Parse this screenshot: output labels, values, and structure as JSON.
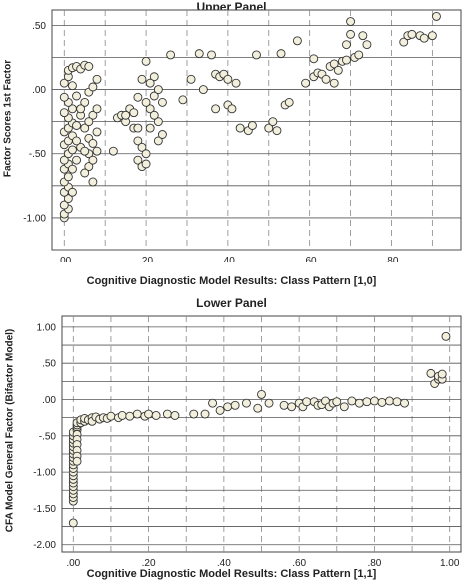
{
  "chart_data": [
    {
      "type": "scatter",
      "title": "Upper Panel",
      "xlabel": "Cognitive Diagnostic Model Results: Class Pattern [1,0]",
      "ylabel": "Factor Scores 1st Factor",
      "xlim": [
        -0.03,
        0.97
      ],
      "ylim": [
        -1.25,
        0.62
      ],
      "xticks": [
        ".00",
        ".20",
        ".40",
        ".60",
        ".80"
      ],
      "xtick_values": [
        0.0,
        0.2,
        0.4,
        0.6,
        0.8
      ],
      "yticks": [
        ".50",
        ".00",
        "-.50",
        "-1.00"
      ],
      "ytick_values": [
        0.5,
        0.0,
        -0.5,
        -1.0
      ],
      "grid": "dashed vertical at 0.1 steps, solid horizontal at 0.25 steps",
      "marker_color": "#f2efdc",
      "points": [
        [
          0.0,
          -1.0
        ],
        [
          0.0,
          -0.97
        ],
        [
          0.01,
          -0.93
        ],
        [
          0.0,
          -0.9
        ],
        [
          0.01,
          -0.85
        ],
        [
          0.0,
          -0.8
        ],
        [
          0.01,
          -0.76
        ],
        [
          0.0,
          -0.72
        ],
        [
          0.01,
          -0.68
        ],
        [
          0.0,
          -0.62
        ],
        [
          0.01,
          -0.58
        ],
        [
          0.0,
          -0.55
        ],
        [
          0.01,
          -0.5
        ],
        [
          0.02,
          -0.47
        ],
        [
          0.0,
          -0.43
        ],
        [
          0.01,
          -0.4
        ],
        [
          0.02,
          -0.36
        ],
        [
          0.0,
          -0.33
        ],
        [
          0.01,
          -0.3
        ],
        [
          0.02,
          -0.26
        ],
        [
          0.01,
          -0.22
        ],
        [
          0.0,
          -0.18
        ],
        [
          0.02,
          -0.15
        ],
        [
          0.01,
          -0.1
        ],
        [
          0.0,
          -0.06
        ],
        [
          0.0,
          0.05
        ],
        [
          0.01,
          0.1
        ],
        [
          0.01,
          0.15
        ],
        [
          0.02,
          0.17
        ],
        [
          0.03,
          0.18
        ],
        [
          0.04,
          0.16
        ],
        [
          0.05,
          0.19
        ],
        [
          0.06,
          0.18
        ],
        [
          0.02,
          0.03
        ],
        [
          0.03,
          -0.05
        ],
        [
          0.03,
          -0.28
        ],
        [
          0.04,
          -0.2
        ],
        [
          0.04,
          -0.45
        ],
        [
          0.05,
          -0.3
        ],
        [
          0.05,
          -0.1
        ],
        [
          0.06,
          -0.38
        ],
        [
          0.06,
          -0.5
        ],
        [
          0.07,
          -0.42
        ],
        [
          0.07,
          -0.2
        ],
        [
          0.08,
          -0.33
        ],
        [
          0.08,
          -0.48
        ],
        [
          0.06,
          -0.02
        ],
        [
          0.07,
          0.02
        ],
        [
          0.08,
          0.08
        ],
        [
          0.06,
          -0.6
        ],
        [
          0.07,
          -0.72
        ],
        [
          0.03,
          -0.55
        ],
        [
          0.05,
          -0.65
        ],
        [
          0.02,
          -0.8
        ],
        [
          0.04,
          -0.15
        ],
        [
          0.03,
          -0.4
        ],
        [
          0.05,
          -0.48
        ],
        [
          0.06,
          -0.25
        ],
        [
          0.08,
          -0.15
        ],
        [
          0.07,
          -0.55
        ],
        [
          0.02,
          -0.62
        ],
        [
          0.12,
          -0.48
        ],
        [
          0.13,
          -0.22
        ],
        [
          0.14,
          -0.2
        ],
        [
          0.15,
          -0.25
        ],
        [
          0.16,
          -0.15
        ],
        [
          0.17,
          -0.18
        ],
        [
          0.17,
          -0.3
        ],
        [
          0.18,
          -0.4
        ],
        [
          0.18,
          -0.55
        ],
        [
          0.19,
          -0.6
        ],
        [
          0.19,
          -0.45
        ],
        [
          0.2,
          -0.58
        ],
        [
          0.2,
          -0.5
        ],
        [
          0.21,
          -0.3
        ],
        [
          0.21,
          -0.15
        ],
        [
          0.22,
          -0.05
        ],
        [
          0.22,
          0.1
        ],
        [
          0.23,
          -0.25
        ],
        [
          0.23,
          -0.4
        ],
        [
          0.24,
          -0.1
        ],
        [
          0.2,
          0.22
        ],
        [
          0.19,
          0.08
        ],
        [
          0.18,
          -0.06
        ],
        [
          0.21,
          0.05
        ],
        [
          0.22,
          -0.2
        ],
        [
          0.23,
          0.0
        ],
        [
          0.24,
          -0.35
        ],
        [
          0.18,
          -0.3
        ],
        [
          0.15,
          -0.2
        ],
        [
          0.2,
          -0.1
        ],
        [
          0.26,
          0.27
        ],
        [
          0.29,
          -0.08
        ],
        [
          0.31,
          0.08
        ],
        [
          0.33,
          0.28
        ],
        [
          0.34,
          0.0
        ],
        [
          0.36,
          0.27
        ],
        [
          0.37,
          -0.15
        ],
        [
          0.37,
          0.12
        ],
        [
          0.38,
          0.1
        ],
        [
          0.39,
          0.12
        ],
        [
          0.4,
          0.08
        ],
        [
          0.4,
          -0.12
        ],
        [
          0.41,
          -0.15
        ],
        [
          0.42,
          0.05
        ],
        [
          0.43,
          -0.3
        ],
        [
          0.45,
          -0.32
        ],
        [
          0.46,
          -0.28
        ],
        [
          0.47,
          0.27
        ],
        [
          0.5,
          -0.3
        ],
        [
          0.51,
          -0.25
        ],
        [
          0.52,
          -0.32
        ],
        [
          0.53,
          0.28
        ],
        [
          0.54,
          -0.12
        ],
        [
          0.55,
          -0.1
        ],
        [
          0.57,
          0.38
        ],
        [
          0.59,
          0.05
        ],
        [
          0.61,
          0.1
        ],
        [
          0.61,
          0.24
        ],
        [
          0.62,
          0.13
        ],
        [
          0.63,
          0.12
        ],
        [
          0.64,
          0.08
        ],
        [
          0.65,
          0.18
        ],
        [
          0.66,
          0.2
        ],
        [
          0.66,
          0.05
        ],
        [
          0.67,
          0.15
        ],
        [
          0.68,
          0.22
        ],
        [
          0.69,
          0.23
        ],
        [
          0.69,
          0.35
        ],
        [
          0.7,
          0.43
        ],
        [
          0.7,
          0.53
        ],
        [
          0.71,
          0.25
        ],
        [
          0.72,
          0.27
        ],
        [
          0.73,
          0.42
        ],
        [
          0.74,
          0.35
        ],
        [
          0.83,
          0.37
        ],
        [
          0.84,
          0.42
        ],
        [
          0.85,
          0.43
        ],
        [
          0.87,
          0.42
        ],
        [
          0.88,
          0.4
        ],
        [
          0.9,
          0.42
        ],
        [
          0.91,
          0.57
        ]
      ]
    },
    {
      "type": "scatter",
      "title": "Lower Panel",
      "xlabel": "Cognitive Diagnostic Model Results: Class Pattern [1,1]",
      "ylabel": "CFA Model General Factor (Bifactor Model)",
      "xlim": [
        -0.03,
        1.03
      ],
      "ylim": [
        -2.1,
        1.15
      ],
      "xticks": [
        ".00",
        ".20",
        ".40",
        ".60",
        ".80",
        "1.00"
      ],
      "xtick_values": [
        0.0,
        0.2,
        0.4,
        0.6,
        0.8,
        1.0
      ],
      "yticks": [
        "1.00",
        ".50",
        ".00",
        "-.50",
        "-1.00",
        "-1.50",
        "-2.00"
      ],
      "ytick_values": [
        1.0,
        0.5,
        0.0,
        -0.5,
        -1.0,
        -1.5,
        -2.0
      ],
      "grid": "dashed vertical at 0.1 steps, solid horizontal at 0.25 steps",
      "marker_color": "#f2efdc",
      "points": [
        [
          0.0,
          -1.7
        ],
        [
          0.0,
          -1.4
        ],
        [
          0.0,
          -1.35
        ],
        [
          0.0,
          -1.3
        ],
        [
          0.0,
          -1.25
        ],
        [
          0.0,
          -1.2
        ],
        [
          0.0,
          -1.15
        ],
        [
          0.0,
          -1.1
        ],
        [
          0.0,
          -1.05
        ],
        [
          0.0,
          -1.0
        ],
        [
          0.0,
          -0.95
        ],
        [
          0.0,
          -0.9
        ],
        [
          0.0,
          -0.85
        ],
        [
          0.0,
          -0.8
        ],
        [
          0.0,
          -0.75
        ],
        [
          0.0,
          -0.7
        ],
        [
          0.0,
          -0.65
        ],
        [
          0.0,
          -0.6
        ],
        [
          0.0,
          -0.55
        ],
        [
          0.0,
          -0.5
        ],
        [
          0.0,
          -0.45
        ],
        [
          0.01,
          -0.42
        ],
        [
          0.01,
          -0.38
        ],
        [
          0.01,
          -0.35
        ],
        [
          0.01,
          -0.32
        ],
        [
          0.01,
          -0.48
        ],
        [
          0.01,
          -0.55
        ],
        [
          0.01,
          -0.62
        ],
        [
          0.01,
          -0.7
        ],
        [
          0.01,
          -0.78
        ],
        [
          0.01,
          -0.85
        ],
        [
          0.02,
          -0.32
        ],
        [
          0.02,
          -0.28
        ],
        [
          0.03,
          -0.3
        ],
        [
          0.03,
          -0.26
        ],
        [
          0.04,
          -0.28
        ],
        [
          0.05,
          -0.25
        ],
        [
          0.05,
          -0.3
        ],
        [
          0.06,
          -0.24
        ],
        [
          0.07,
          -0.27
        ],
        [
          0.08,
          -0.25
        ],
        [
          0.09,
          -0.26
        ],
        [
          0.1,
          -0.23
        ],
        [
          0.12,
          -0.25
        ],
        [
          0.13,
          -0.22
        ],
        [
          0.15,
          -0.23
        ],
        [
          0.17,
          -0.2
        ],
        [
          0.19,
          -0.23
        ],
        [
          0.2,
          -0.2
        ],
        [
          0.22,
          -0.22
        ],
        [
          0.25,
          -0.2
        ],
        [
          0.27,
          -0.22
        ],
        [
          0.32,
          -0.2
        ],
        [
          0.35,
          -0.2
        ],
        [
          0.37,
          -0.05
        ],
        [
          0.39,
          -0.15
        ],
        [
          0.41,
          -0.1
        ],
        [
          0.43,
          -0.08
        ],
        [
          0.46,
          -0.05
        ],
        [
          0.49,
          -0.12
        ],
        [
          0.5,
          0.07
        ],
        [
          0.52,
          -0.05
        ],
        [
          0.56,
          -0.08
        ],
        [
          0.58,
          -0.1
        ],
        [
          0.6,
          -0.05
        ],
        [
          0.61,
          -0.1
        ],
        [
          0.62,
          -0.03
        ],
        [
          0.64,
          -0.03
        ],
        [
          0.65,
          -0.08
        ],
        [
          0.66,
          -0.07
        ],
        [
          0.67,
          -0.02
        ],
        [
          0.68,
          -0.1
        ],
        [
          0.69,
          -0.05
        ],
        [
          0.7,
          -0.03
        ],
        [
          0.72,
          -0.1
        ],
        [
          0.74,
          -0.02
        ],
        [
          0.76,
          -0.05
        ],
        [
          0.78,
          -0.03
        ],
        [
          0.8,
          -0.02
        ],
        [
          0.82,
          -0.04
        ],
        [
          0.84,
          -0.02
        ],
        [
          0.86,
          -0.03
        ],
        [
          0.88,
          -0.05
        ],
        [
          0.95,
          0.36
        ],
        [
          0.96,
          0.22
        ],
        [
          0.97,
          0.28
        ],
        [
          0.97,
          0.32
        ],
        [
          0.98,
          0.28
        ],
        [
          0.98,
          0.35
        ],
        [
          0.99,
          0.87
        ]
      ]
    }
  ]
}
